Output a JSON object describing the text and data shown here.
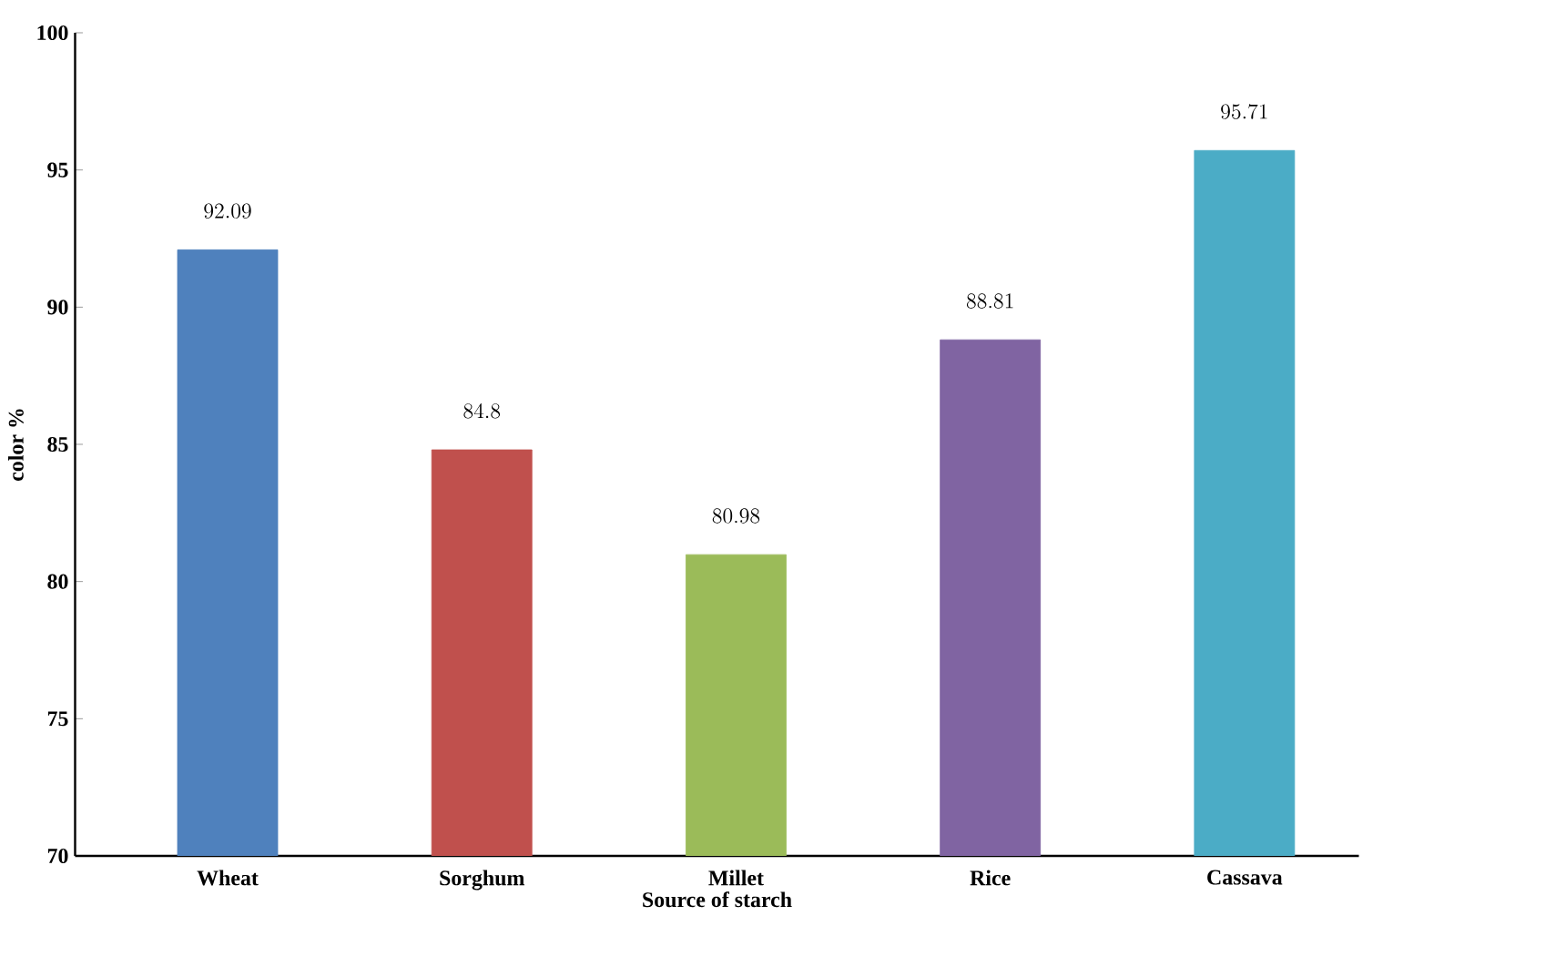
{
  "chart_data": {
    "type": "bar",
    "xlabel": "Source of starch",
    "ylabel": "color %",
    "categories": [
      "Wheat",
      "Sorghum",
      "Millet",
      "Rice",
      "Cassava"
    ],
    "values": [
      92.09,
      84.8,
      80.98,
      88.81,
      95.71
    ],
    "colors": [
      "#4f81bd",
      "#c0504d",
      "#9bbb59",
      "#8064a2",
      "#4bacc6"
    ],
    "ylim": [
      70,
      100
    ],
    "yticks": [
      70,
      75,
      80,
      85,
      90,
      95,
      100
    ],
    "data_labels": true
  }
}
